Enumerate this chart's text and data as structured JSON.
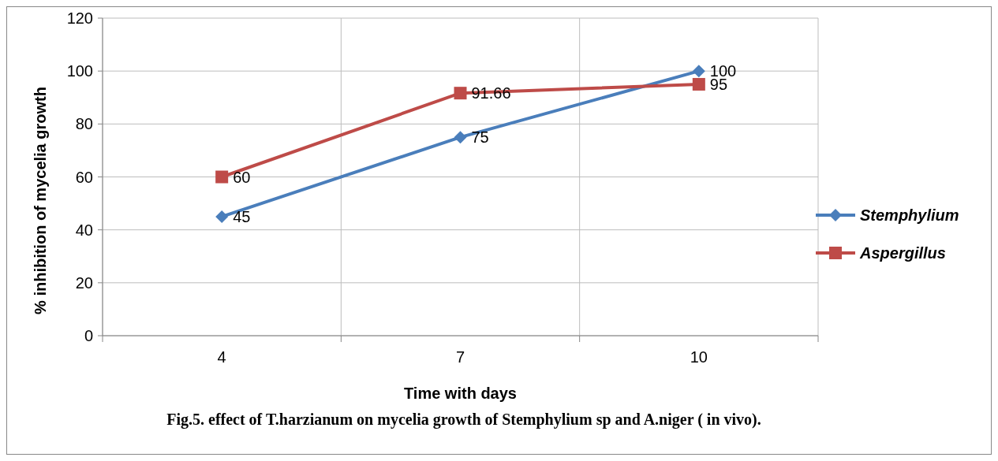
{
  "chart_data": {
    "type": "line",
    "xlabel": "Time with days",
    "ylabel": "% inhibition of mycelia growth",
    "categories": [
      "4",
      "7",
      "10"
    ],
    "series": [
      {
        "name": "Stemphylium",
        "color": "#4a7ebb",
        "marker": "diamond",
        "values": [
          45,
          75,
          100
        ]
      },
      {
        "name": "Aspergillus",
        "color": "#be4b48",
        "marker": "square",
        "values": [
          60,
          91.66,
          95
        ]
      }
    ],
    "ylim": [
      0,
      120
    ],
    "yticks": [
      0,
      20,
      40,
      60,
      80,
      100,
      120
    ],
    "grid": true,
    "legend": "right",
    "data_labels": true,
    "annotations": [
      "Fig.5. effect of T.harzianum on mycelia growth of Stemphylium sp and A.niger ( in vivo)."
    ]
  }
}
